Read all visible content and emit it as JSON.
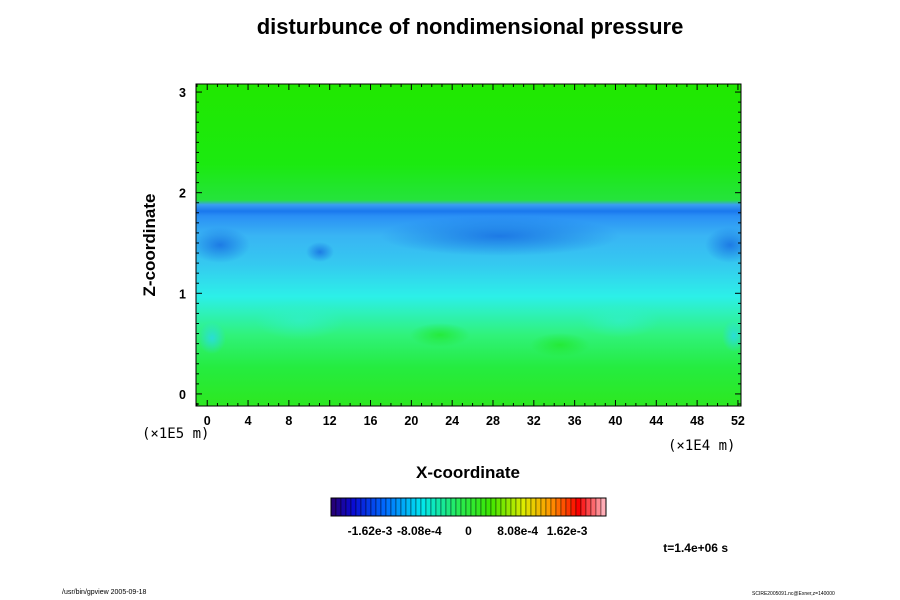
{
  "chart_data": {
    "type": "heatmap",
    "title": "disturbunce of nondimensional pressure",
    "xlabel": "X-coordinate",
    "ylabel": "Z-coordinate",
    "x_unit": "(×1E4 m)",
    "y_unit": "(×1E5 m)",
    "xlim": [
      -1.1,
      52.3
    ],
    "ylim": [
      -0.12,
      3.08
    ],
    "x_ticks": [
      0,
      4,
      8,
      12,
      16,
      20,
      24,
      28,
      32,
      36,
      40,
      44,
      48,
      52
    ],
    "y_ticks": [
      0,
      1,
      2,
      3
    ],
    "colorbar": {
      "labels": [
        "-1.62e-3",
        "-8.08e-4",
        "0",
        "8.08e-4",
        "1.62e-3"
      ],
      "range": [
        -0.00226,
        0.00226
      ]
    },
    "field_profile": [
      {
        "z": -0.12,
        "value": 0.0004
      },
      {
        "z": 0.1,
        "value": 0.00025
      },
      {
        "z": 0.45,
        "value": -0.0001
      },
      {
        "z": 0.85,
        "value": -0.0005
      },
      {
        "z": 1.3,
        "value": -0.00085
      },
      {
        "z": 1.55,
        "value": -0.00105
      },
      {
        "z": 1.72,
        "value": -0.00125
      },
      {
        "z": 1.8,
        "value": -0.00145
      },
      {
        "z": 1.88,
        "value": -0.0009
      },
      {
        "z": 1.97,
        "value": 0.0003
      },
      {
        "z": 2.2,
        "value": 0.00045
      },
      {
        "z": 3.08,
        "value": 0.0004
      }
    ],
    "time_label": "t=1.4e+06 s"
  },
  "footer": {
    "left": "/usr/bin/gpview 2005-09-18",
    "right": "SCIRE2005091.nc@Exner,z=140000"
  }
}
